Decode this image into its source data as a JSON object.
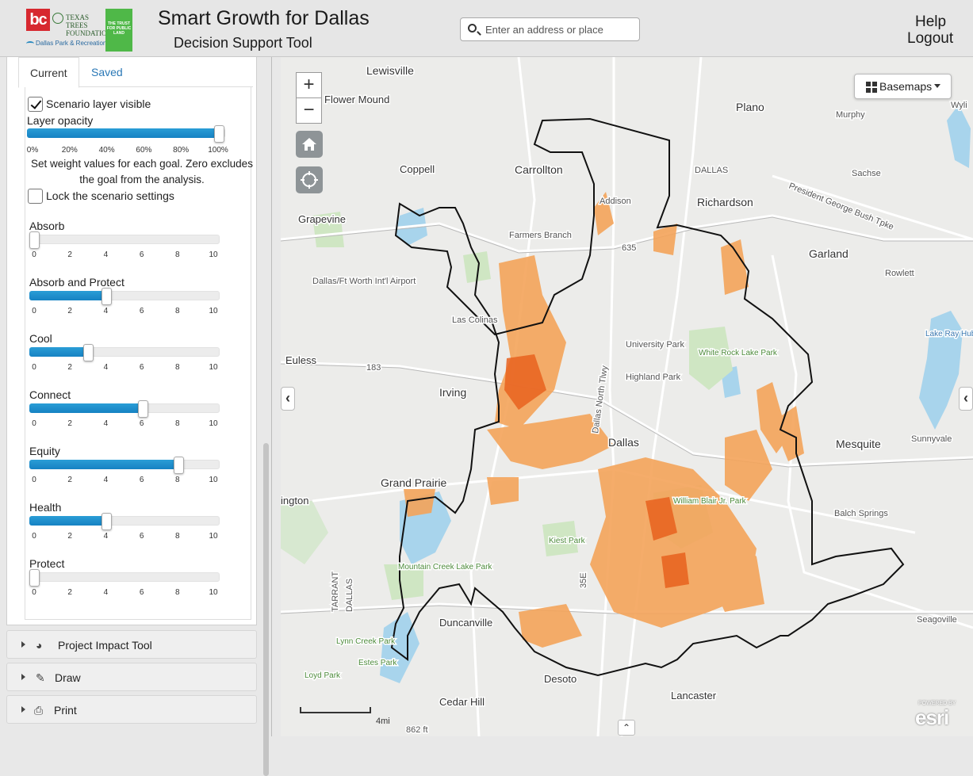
{
  "header": {
    "logo_bc": "bc",
    "logo_ttf": "TEXAS TREES FOUNDATION",
    "logo_dpr": "Dallas Park & Recreation",
    "logo_tpl": "THE TRUST FOR PUBLIC LAND",
    "title": "Smart Growth for Dallas",
    "subtitle": "Decision Support Tool",
    "search_placeholder": "Enter an address or place",
    "help": "Help",
    "logout": "Logout"
  },
  "sidebar": {
    "tabs": {
      "current": "Current",
      "saved": "Saved"
    },
    "scenario_visible_label": "Scenario layer visible",
    "scenario_visible": true,
    "opacity_label": "Layer opacity",
    "opacity_value": 100,
    "opacity_ticks": [
      "0%",
      "20%",
      "40%",
      "60%",
      "80%",
      "100%"
    ],
    "weight_note": "Set weight values for each goal. Zero excludes the goal from the analysis.",
    "lock_label": "Lock the scenario settings",
    "lock_checked": false,
    "weight_max": 10,
    "weight_ticks": [
      "0",
      "2",
      "4",
      "6",
      "8",
      "10"
    ],
    "goals": [
      {
        "name": "Absorb",
        "value": 0
      },
      {
        "name": "Absorb and Protect",
        "value": 4
      },
      {
        "name": "Cool",
        "value": 3
      },
      {
        "name": "Connect",
        "value": 6
      },
      {
        "name": "Equity",
        "value": 8
      },
      {
        "name": "Health",
        "value": 4
      },
      {
        "name": "Protect",
        "value": 0
      }
    ],
    "accordions": [
      {
        "label": "Project Impact Tool",
        "icon": "pie-chart-icon",
        "glyph": "◕"
      },
      {
        "label": "Draw",
        "icon": "brush-icon",
        "glyph": "✎"
      },
      {
        "label": "Print",
        "icon": "printer-icon",
        "glyph": "⎙"
      }
    ]
  },
  "map": {
    "zoom_in": "+",
    "zoom_out": "−",
    "basemaps_label": "Basemaps",
    "scale_label": "4mi",
    "esri_powered": "POWERED BY",
    "esri": "esri",
    "colors": {
      "scenario": "#f4a45a",
      "scenario_dark": "#e8621e",
      "boundary": "#111111",
      "water": "#a8d4ec",
      "park": "#cfe6c3"
    },
    "labels": {
      "lewisville": "Lewisville",
      "flower_mound": "Flower Mound",
      "plano": "Plano",
      "murphy": "Murphy",
      "wylie": "Wyli",
      "coppell": "Coppell",
      "carrollton": "Carrollton",
      "dallas_county": "DALLAS",
      "sachse": "Sachse",
      "richardson": "Richardson",
      "addison": "Addison",
      "pgbt": "President George Bush Tpke",
      "grapevine": "Grapevine",
      "farmers_branch": "Farmers Branch",
      "garland": "Garland",
      "rowlett": "Rowlett",
      "dfw": "Dallas/Ft Worth Int'l Airport",
      "las_colinas": "Las Colinas",
      "university_park": "University Park",
      "lake_ray_hubbard": "Lake Ray Hubbard",
      "white_rock": "White Rock Lake Park",
      "euless": "Euless",
      "irving": "Irving",
      "highland_park": "Highland Park",
      "dallas": "Dallas",
      "mesquite": "Mesquite",
      "sunnyvale": "Sunnyvale",
      "grand_prairie": "Grand Prairie",
      "arlington": "ington",
      "william_blair": "William Blair Jr. Park",
      "balch_springs": "Balch Springs",
      "kiest": "Kiest Park",
      "mountain_creek": "Mountain Creek Lake Park",
      "tarrant": "TARRANT",
      "dallas_co": "DALLAS",
      "duncanville": "Duncanville",
      "seagoville": "Seagoville",
      "lynn_creek": "Lynn Creek Park",
      "estes": "Estes Park",
      "loyd": "Loyd Park",
      "desoto": "Desoto",
      "cedar_hill": "Cedar Hill",
      "lancaster": "Lancaster",
      "elev": "862 ft",
      "tollway": "Dallas North Tlwy",
      "i635": "635",
      "i35e": "35E",
      "hwy183": "183"
    }
  }
}
